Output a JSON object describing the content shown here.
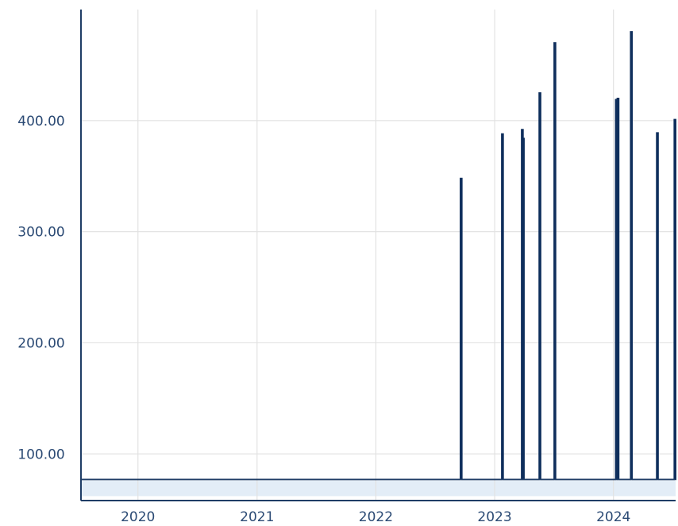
{
  "chart_data": {
    "type": "line",
    "title": "",
    "xlabel": "",
    "ylabel": "",
    "x_tick_labels": [
      "2020",
      "2021",
      "2022",
      "2023",
      "2024"
    ],
    "y_tick_labels": [
      "100.00",
      "200.00",
      "300.00",
      "400.00"
    ],
    "y_ticks": [
      100,
      200,
      300,
      400
    ],
    "ylim": [
      58,
      500
    ],
    "xlim": [
      "2019-07-10",
      "2024-07-10"
    ],
    "x_ticks": [
      "2020-01-01",
      "2021-01-01",
      "2022-01-01",
      "2023-01-01",
      "2024-01-01"
    ],
    "baseline_value": 77,
    "band_range": [
      62,
      76
    ],
    "grid": true,
    "series": [
      {
        "points": [
          {
            "x": "2022-09-20",
            "y": 348
          },
          {
            "x": "2023-01-25",
            "y": 388
          },
          {
            "x": "2023-03-27",
            "y": 392
          },
          {
            "x": "2023-03-30",
            "y": 384
          },
          {
            "x": "2023-05-20",
            "y": 425
          },
          {
            "x": "2023-07-05",
            "y": 470
          },
          {
            "x": "2024-01-10",
            "y": 419
          },
          {
            "x": "2024-01-15",
            "y": 420
          },
          {
            "x": "2024-02-25",
            "y": 480
          },
          {
            "x": "2024-05-15",
            "y": 389
          },
          {
            "x": "2024-07-08",
            "y": 401
          }
        ]
      }
    ]
  }
}
